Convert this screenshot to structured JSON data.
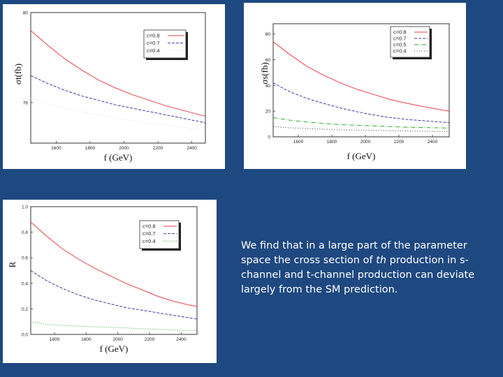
{
  "caption": {
    "pre": "We find that in a large part of the parameter space the cross section of ",
    "italic": "th",
    "post": " production in s-channel and t-channel production can deviate largely from the SM prediction."
  },
  "chart_data": [
    {
      "id": "panel-a",
      "type": "line",
      "xlabel": "f (GeV)",
      "ylabel": "σt(fb)",
      "xlim": [
        1450,
        2480
      ],
      "ylim": [
        74.2,
        80
      ],
      "xticks": [
        1600,
        1800,
        2000,
        2200,
        2400
      ],
      "xtick_labels": [
        "1600",
        "1800",
        "2000",
        "2200",
        "2400"
      ],
      "yticks": [
        76,
        80
      ],
      "ytick_labels": [
        "76",
        "80"
      ],
      "x": [
        1450,
        1550,
        1650,
        1750,
        1850,
        1950,
        2050,
        2150,
        2250,
        2350,
        2450,
        2480
      ],
      "series": [
        {
          "name": "c=0.8",
          "color": "#e8404a",
          "dash": "none",
          "values": [
            79.2,
            78.55,
            77.95,
            77.45,
            77.0,
            76.65,
            76.35,
            76.1,
            75.85,
            75.65,
            75.45,
            75.4
          ]
        },
        {
          "name": "c=0.7",
          "color": "#3a3aa8",
          "dash": "4,2",
          "values": [
            77.2,
            76.85,
            76.55,
            76.3,
            76.1,
            75.9,
            75.75,
            75.6,
            75.45,
            75.3,
            75.15,
            75.1
          ]
        },
        {
          "name": "c=0.4",
          "color": "#d0e0d0",
          "dash": "1,2",
          "values": [
            76.2,
            75.95,
            75.75,
            75.6,
            75.45,
            75.3,
            75.2,
            75.1,
            75.0,
            74.9,
            74.8,
            74.78
          ]
        }
      ],
      "legend": "top-right"
    },
    {
      "id": "panel-b",
      "type": "line",
      "xlabel": "f (GeV)",
      "ylabel": "σs(fb)",
      "xlim": [
        1450,
        2500
      ],
      "ylim": [
        0,
        88
      ],
      "xticks": [
        1600,
        1800,
        2000,
        2200,
        2400
      ],
      "xtick_labels": [
        "1600",
        "1800",
        "2000",
        "2200",
        "2400"
      ],
      "yticks": [
        0,
        20,
        40,
        60,
        80
      ],
      "ytick_labels": [
        "0",
        "20",
        "40",
        "60",
        "80"
      ],
      "x": [
        1450,
        1550,
        1650,
        1750,
        1850,
        1950,
        2050,
        2150,
        2250,
        2350,
        2450,
        2500
      ],
      "series": [
        {
          "name": "c=0.8",
          "color": "#e8404a",
          "dash": "none",
          "values": [
            74,
            64,
            55,
            48,
            42,
            37,
            33,
            29,
            26,
            23.5,
            21,
            20
          ]
        },
        {
          "name": "c=0.7",
          "color": "#3a3aa8",
          "dash": "4,2",
          "values": [
            42,
            35,
            30,
            26,
            22.5,
            19.5,
            17,
            15,
            13.5,
            12.5,
            11.5,
            11
          ]
        },
        {
          "name": "c=0.5",
          "color": "#2faa2f",
          "dash": "6,2,1,2",
          "values": [
            15,
            13,
            11.5,
            10.5,
            9.5,
            9,
            8.5,
            8,
            7.5,
            7.2,
            7,
            6.8
          ]
        },
        {
          "name": "c=0.4",
          "color": "#333333",
          "dash": "1,2.5",
          "values": [
            8,
            7,
            6.5,
            6,
            5.5,
            5.2,
            5,
            4.8,
            4.6,
            4.4,
            4.2,
            4.1
          ]
        }
      ],
      "legend": "top-right"
    },
    {
      "id": "panel-c",
      "type": "line",
      "xlabel": "f (GeV)",
      "ylabel": "R",
      "xlim": [
        1450,
        2500
      ],
      "ylim": [
        0,
        1.0
      ],
      "xticks": [
        1600,
        1800,
        2000,
        2200,
        2400
      ],
      "xtick_labels": [
        "1600",
        "1800",
        "2000",
        "2200",
        "2400"
      ],
      "yticks": [
        0,
        0.2,
        0.4,
        0.6,
        0.8,
        1.0
      ],
      "ytick_labels": [
        "0.0",
        "0.2",
        "0.4",
        "0.6",
        "0.8",
        "1.0"
      ],
      "x": [
        1450,
        1550,
        1650,
        1750,
        1850,
        1950,
        2050,
        2150,
        2250,
        2350,
        2450,
        2500
      ],
      "series": [
        {
          "name": "c=0.8",
          "color": "#e8404a",
          "dash": "none",
          "values": [
            0.88,
            0.77,
            0.67,
            0.59,
            0.52,
            0.46,
            0.4,
            0.35,
            0.3,
            0.26,
            0.23,
            0.22
          ]
        },
        {
          "name": "c=0.7",
          "color": "#3a3aa8",
          "dash": "4,2",
          "values": [
            0.5,
            0.42,
            0.36,
            0.31,
            0.27,
            0.24,
            0.21,
            0.19,
            0.17,
            0.15,
            0.13,
            0.12
          ]
        },
        {
          "name": "c=0.4",
          "color": "#2faa2f",
          "dash": "1,2",
          "values": [
            0.1,
            0.08,
            0.07,
            0.065,
            0.06,
            0.055,
            0.05,
            0.045,
            0.04,
            0.035,
            0.03,
            0.03
          ]
        }
      ],
      "legend": "top-right"
    }
  ]
}
